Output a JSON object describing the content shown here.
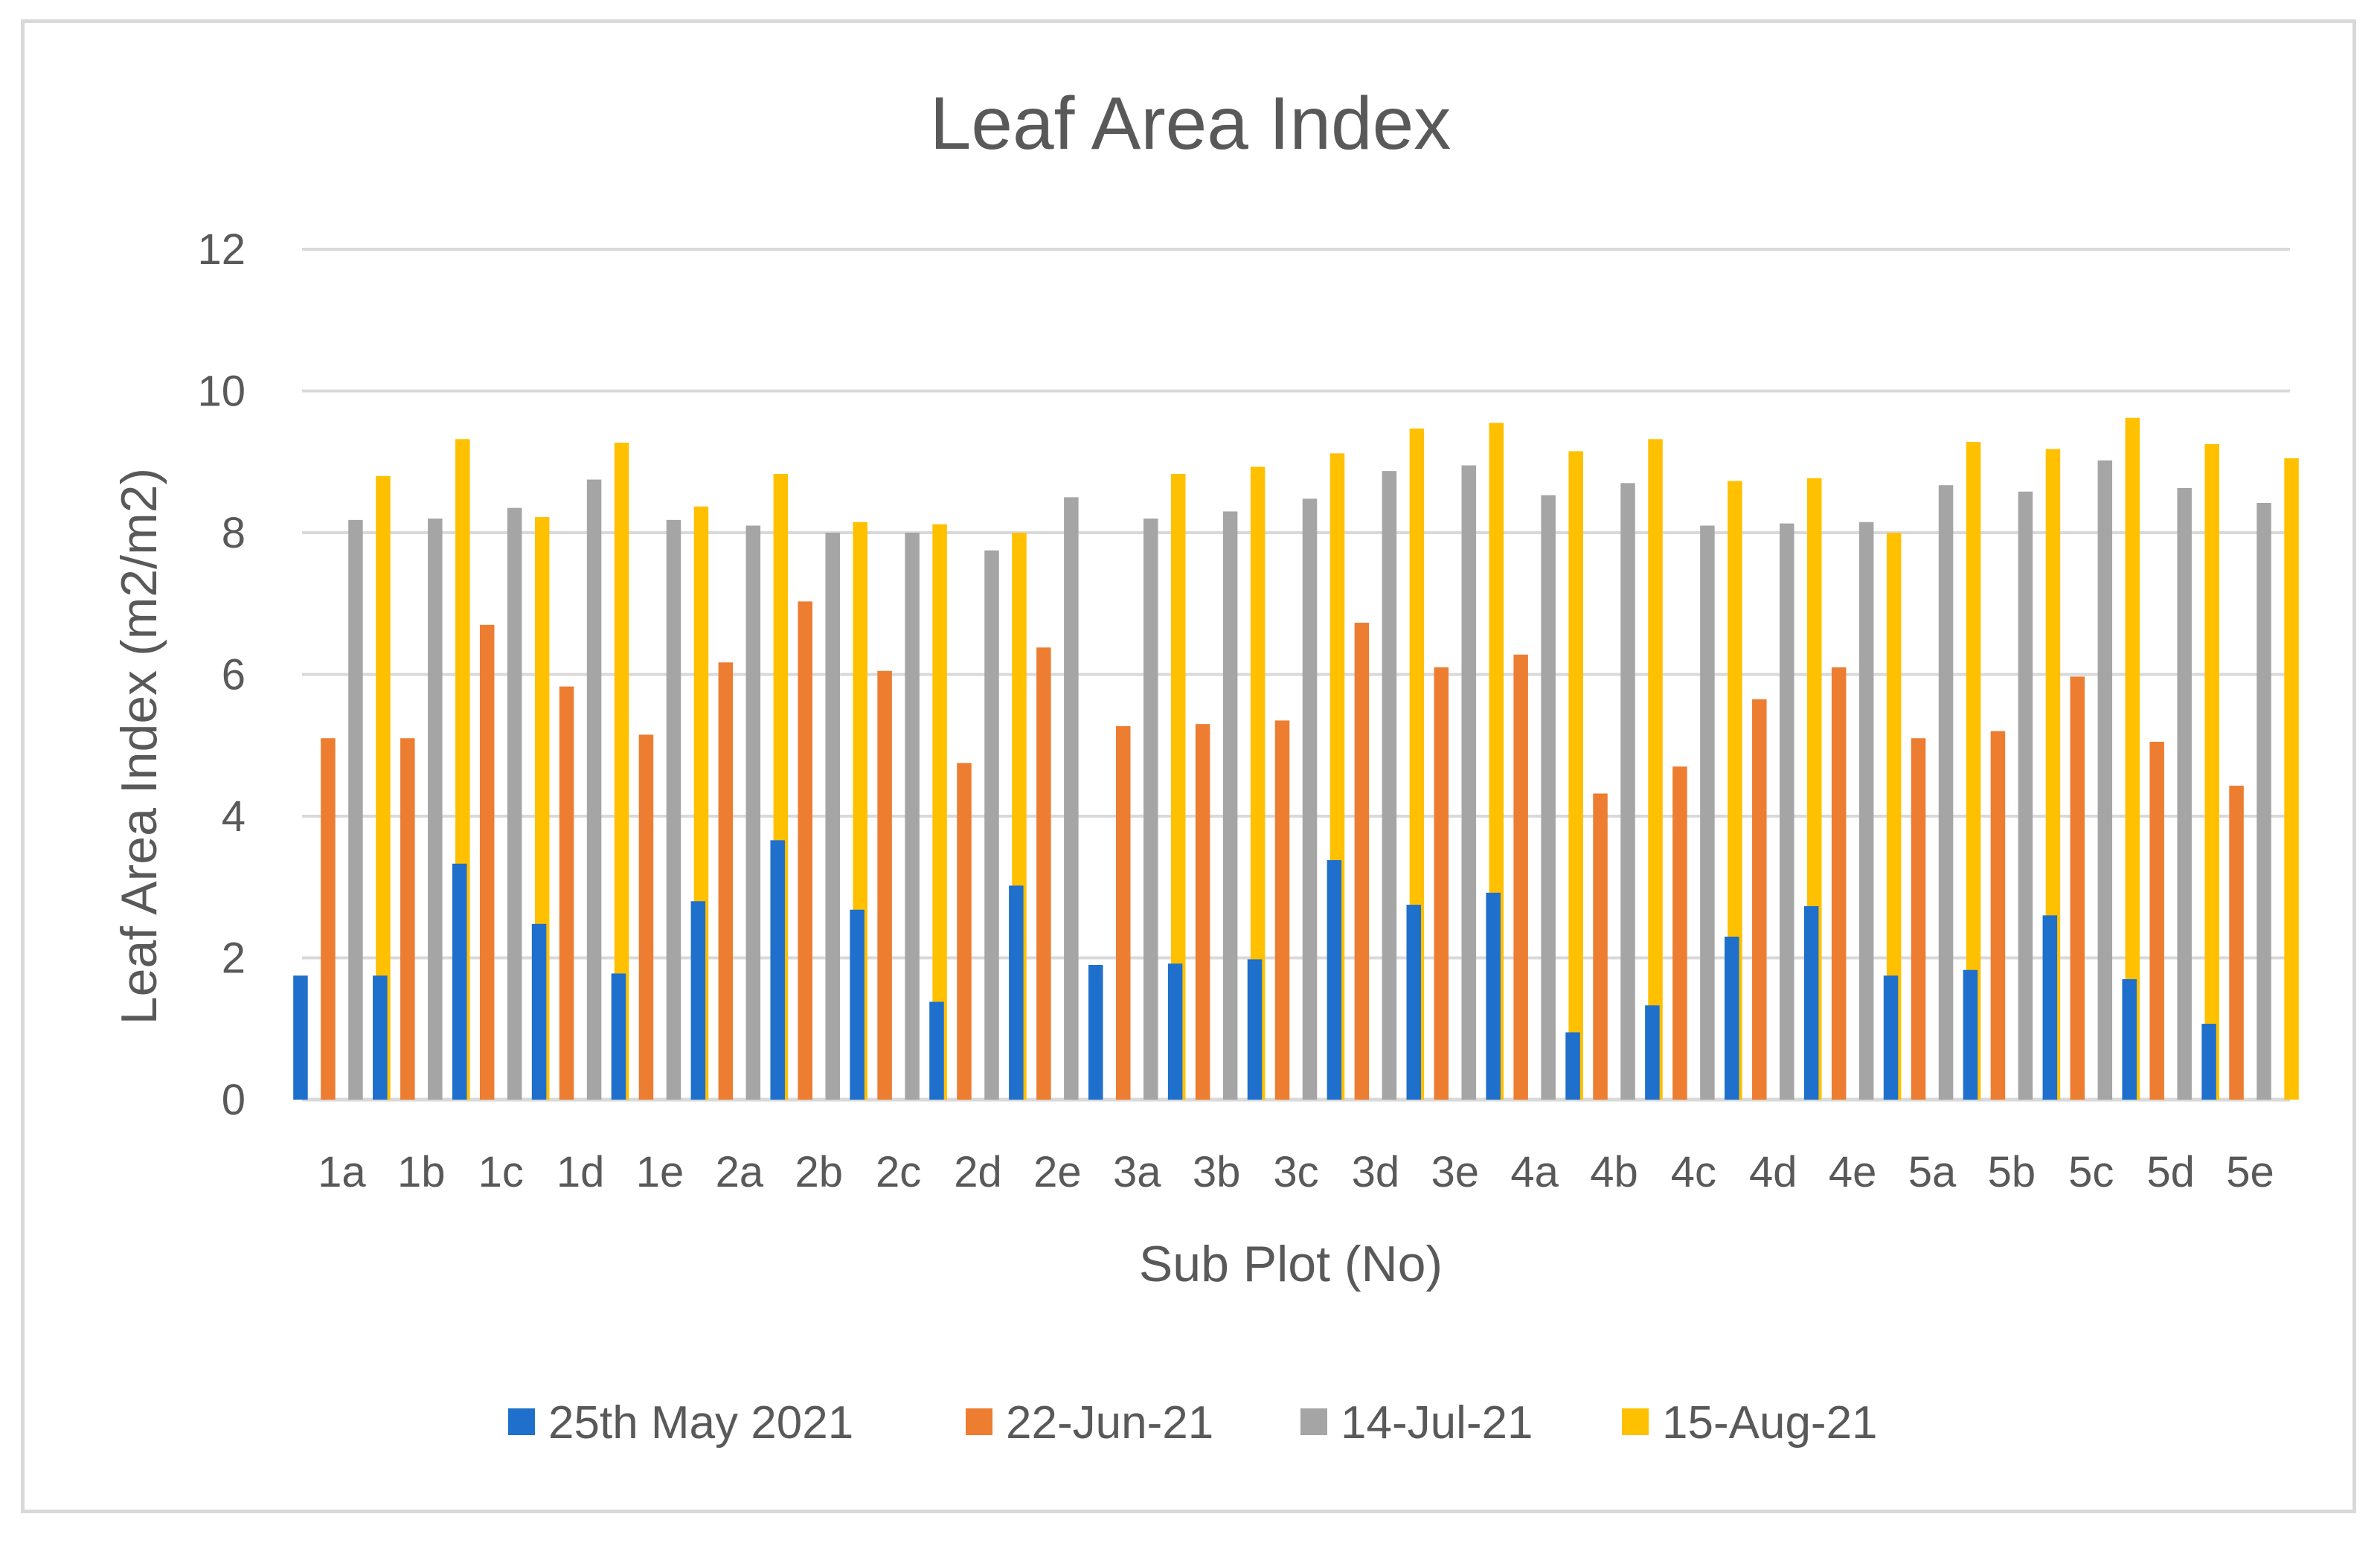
{
  "chart_data": {
    "type": "bar",
    "title": "Leaf Area Index",
    "xlabel": "Sub Plot (No)",
    "ylabel": "Leaf Area Index (m2/m2)",
    "ylim": [
      0,
      12
    ],
    "yticks": [
      0,
      2,
      4,
      6,
      8,
      10,
      12
    ],
    "grid": true,
    "legend_position": "bottom",
    "categories": [
      "1a",
      "1b",
      "1c",
      "1d",
      "1e",
      "2a",
      "2b",
      "2c",
      "2d",
      "2e",
      "3a",
      "3b",
      "3c",
      "3d",
      "3e",
      "4a",
      "4b",
      "4c",
      "4d",
      "4e",
      "5a",
      "5b",
      "5c",
      "5d",
      "5e"
    ],
    "series": [
      {
        "name": "25th May 2021",
        "color": "#1f6fcc",
        "values": [
          1.75,
          1.75,
          3.33,
          2.48,
          1.78,
          2.8,
          3.66,
          2.68,
          1.38,
          3.02,
          1.9,
          1.92,
          1.98,
          3.38,
          2.75,
          2.92,
          0.95,
          1.33,
          2.3,
          2.73,
          1.75,
          1.83,
          2.6,
          1.7,
          1.07
        ]
      },
      {
        "name": "22-Jun-21",
        "color": "#ed7d31",
        "values": [
          5.1,
          5.1,
          6.7,
          5.83,
          5.15,
          6.17,
          7.03,
          6.05,
          4.75,
          6.38,
          5.27,
          5.3,
          5.35,
          6.73,
          6.1,
          6.28,
          4.32,
          4.7,
          5.65,
          6.1,
          5.1,
          5.2,
          5.97,
          5.05,
          4.43
        ]
      },
      {
        "name": "14-Jul-21",
        "color": "#a5a5a5",
        "values": [
          8.18,
          8.2,
          8.35,
          8.75,
          8.18,
          8.1,
          8.0,
          8.0,
          7.75,
          8.5,
          8.2,
          8.3,
          8.48,
          8.87,
          8.95,
          8.53,
          8.7,
          8.1,
          8.13,
          8.15,
          8.67,
          8.58,
          9.02,
          8.63,
          8.42
        ]
      },
      {
        "name": "15-Aug-21",
        "color": "#ffc000",
        "values": [
          8.8,
          9.32,
          8.22,
          9.27,
          8.37,
          8.83,
          8.15,
          8.12,
          8.0,
          null,
          8.83,
          8.93,
          9.12,
          9.47,
          9.55,
          9.15,
          9.32,
          8.73,
          8.77,
          8.0,
          9.28,
          9.18,
          9.62,
          9.25,
          9.05
        ]
      }
    ]
  }
}
